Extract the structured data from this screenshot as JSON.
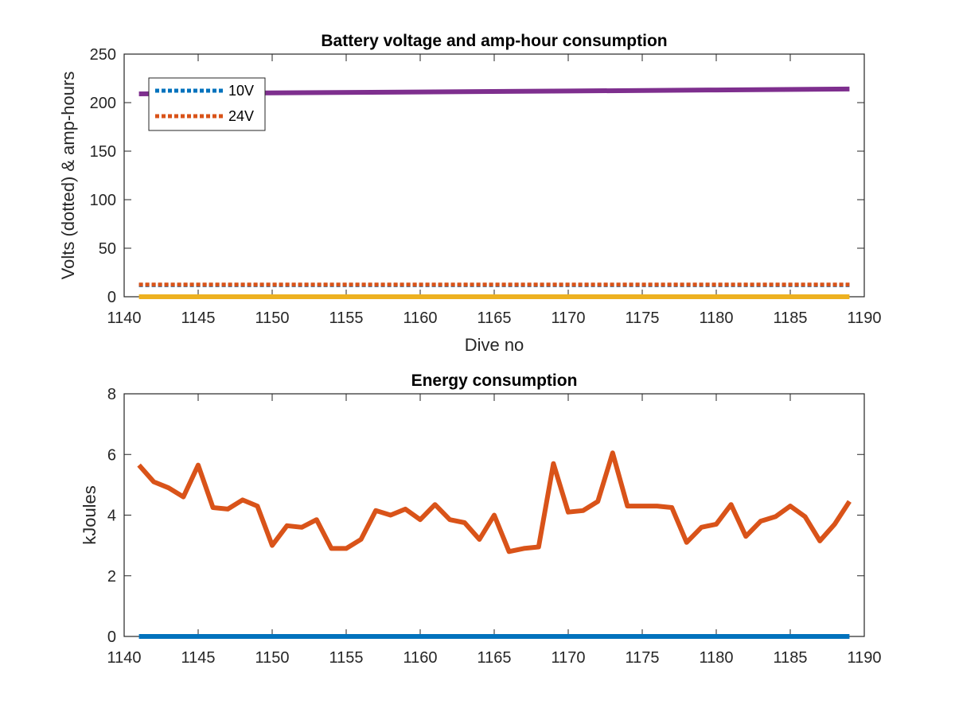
{
  "chart_data": [
    {
      "type": "line",
      "title": "Battery voltage and amp-hour consumption",
      "xlabel": "Dive no",
      "ylabel": "Volts (dotted) & amp-hours",
      "xlim": [
        1140,
        1190
      ],
      "ylim": [
        0,
        250
      ],
      "xticks": [
        "1140",
        "1145",
        "1150",
        "1155",
        "1160",
        "1165",
        "1170",
        "1175",
        "1180",
        "1185",
        "1190"
      ],
      "yticks": [
        "0",
        "50",
        "100",
        "150",
        "200",
        "250"
      ],
      "grid": false,
      "legend_position": "top-left",
      "legend": [
        "10V",
        "24V"
      ],
      "series": [
        {
          "name": "10V",
          "style": "dotted",
          "color": "#0072BD",
          "x": [
            1141,
            1189
          ],
          "y": [
            12,
            12
          ]
        },
        {
          "name": "24V",
          "style": "dotted",
          "color": "#D95319",
          "x": [
            1141,
            1189
          ],
          "y": [
            12.5,
            12.5
          ]
        },
        {
          "style": "solid",
          "color": "#EDB120",
          "x": [
            1141,
            1189
          ],
          "y": [
            0,
            0
          ]
        },
        {
          "style": "solid",
          "color": "#7E2F8E",
          "x": [
            1141,
            1150,
            1160,
            1170,
            1180,
            1189
          ],
          "y": [
            209,
            210,
            211,
            212,
            213,
            214
          ]
        }
      ]
    },
    {
      "type": "line",
      "title": "Energy consumption",
      "xlabel": "",
      "ylabel": "kJoules",
      "xlim": [
        1140,
        1190
      ],
      "ylim": [
        0,
        8
      ],
      "xticks": [
        "1140",
        "1145",
        "1150",
        "1155",
        "1160",
        "1165",
        "1170",
        "1175",
        "1180",
        "1185",
        "1190"
      ],
      "yticks": [
        "0",
        "2",
        "4",
        "6",
        "8"
      ],
      "grid": false,
      "series": [
        {
          "style": "solid",
          "color": "#0072BD",
          "x": [
            1141,
            1189
          ],
          "y": [
            0,
            0
          ]
        },
        {
          "style": "solid",
          "color": "#D95319",
          "x": [
            1141,
            1142,
            1143,
            1144,
            1145,
            1146,
            1147,
            1148,
            1149,
            1150,
            1151,
            1152,
            1153,
            1154,
            1155,
            1156,
            1157,
            1158,
            1159,
            1160,
            1161,
            1162,
            1163,
            1164,
            1165,
            1166,
            1167,
            1168,
            1169,
            1170,
            1171,
            1172,
            1173,
            1174,
            1175,
            1176,
            1177,
            1178,
            1179,
            1180,
            1181,
            1182,
            1183,
            1184,
            1185,
            1186,
            1187,
            1188,
            1189
          ],
          "y": [
            5.65,
            5.1,
            4.9,
            4.6,
            5.65,
            4.25,
            4.2,
            4.5,
            4.3,
            3.0,
            3.65,
            3.6,
            3.85,
            2.9,
            2.9,
            3.2,
            4.15,
            4.0,
            4.2,
            3.85,
            4.35,
            3.85,
            3.75,
            3.2,
            4.0,
            2.8,
            2.9,
            2.95,
            5.7,
            4.1,
            4.15,
            4.45,
            6.05,
            4.3,
            4.3,
            4.3,
            4.25,
            3.1,
            3.6,
            3.7,
            4.35,
            3.3,
            3.8,
            3.95,
            4.3,
            3.95,
            3.15,
            3.7,
            4.45
          ]
        }
      ]
    }
  ]
}
